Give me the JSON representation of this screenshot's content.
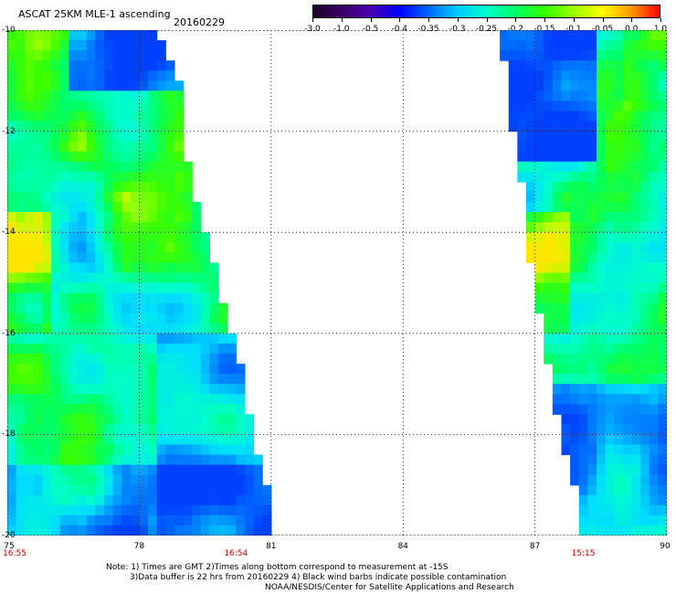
{
  "header": {
    "title": "ASCAT 25KM MLE-1 ascending",
    "date": "20160229"
  },
  "colorbar": {
    "labels": [
      "-3.0",
      "-1.0",
      "-0.5",
      "-0.4",
      "-0.35",
      "-0.3",
      "-0.25",
      "-0.2",
      "-0.15",
      "-0.1",
      "-0.05",
      "0.0",
      "1.0"
    ],
    "colors": [
      "#1a0026",
      "#3d0066",
      "#4a00b3",
      "#0000ff",
      "#0066ff",
      "#00ccff",
      "#00ffcc",
      "#00ff66",
      "#33ff00",
      "#99ff00",
      "#ffff00",
      "#ff9900",
      "#ff0000"
    ]
  },
  "map": {
    "lon_ticks": [
      "75",
      "78",
      "81",
      "84",
      "87",
      "90"
    ],
    "lat_ticks": [
      "-10",
      "-12",
      "-14",
      "-16",
      "-18",
      "-20"
    ],
    "lon_range": [
      75,
      90
    ],
    "lat_range": [
      -10,
      -20
    ],
    "pass_times": [
      {
        "lon": 75,
        "label": "16:55"
      },
      {
        "lon": 80.2,
        "label": "16:54"
      },
      {
        "lon": 88.1,
        "label": "15:15"
      }
    ],
    "swaths": [
      {
        "name": "west",
        "lon_min": 75,
        "lat_edges": [
          [
            -10,
            78.4
          ],
          [
            -11,
            78.9
          ],
          [
            -12,
            79
          ],
          [
            -13,
            79.2
          ],
          [
            -14,
            79.5
          ],
          [
            -15,
            79.8
          ],
          [
            -16,
            80.1
          ],
          [
            -17,
            80.4
          ],
          [
            -18,
            80.6
          ],
          [
            -19,
            80.9
          ],
          [
            -20,
            81
          ]
        ]
      },
      {
        "name": "east",
        "lon_max": 90,
        "lat_edges": [
          [
            -10,
            86.2
          ],
          [
            -11,
            86.4
          ],
          [
            -12,
            86.5
          ],
          [
            -13,
            86.7
          ],
          [
            -14,
            86.8
          ],
          [
            -15,
            87
          ],
          [
            -16,
            87.2
          ],
          [
            -17,
            87.4
          ],
          [
            -18,
            87.6
          ],
          [
            -19,
            87.9
          ],
          [
            -20,
            88
          ]
        ]
      }
    ]
  },
  "footer": {
    "note_line1": "Note: 1) Times are GMT 2)Times along bottom correspond to measurement at -15S",
    "note_line2": "3)Data buffer is 22 hrs from 20160229 4) Black wind barbs indicate possible contamination",
    "note_line3": "NOAA/NESDIS/Center for Satellite Applications and Research"
  }
}
